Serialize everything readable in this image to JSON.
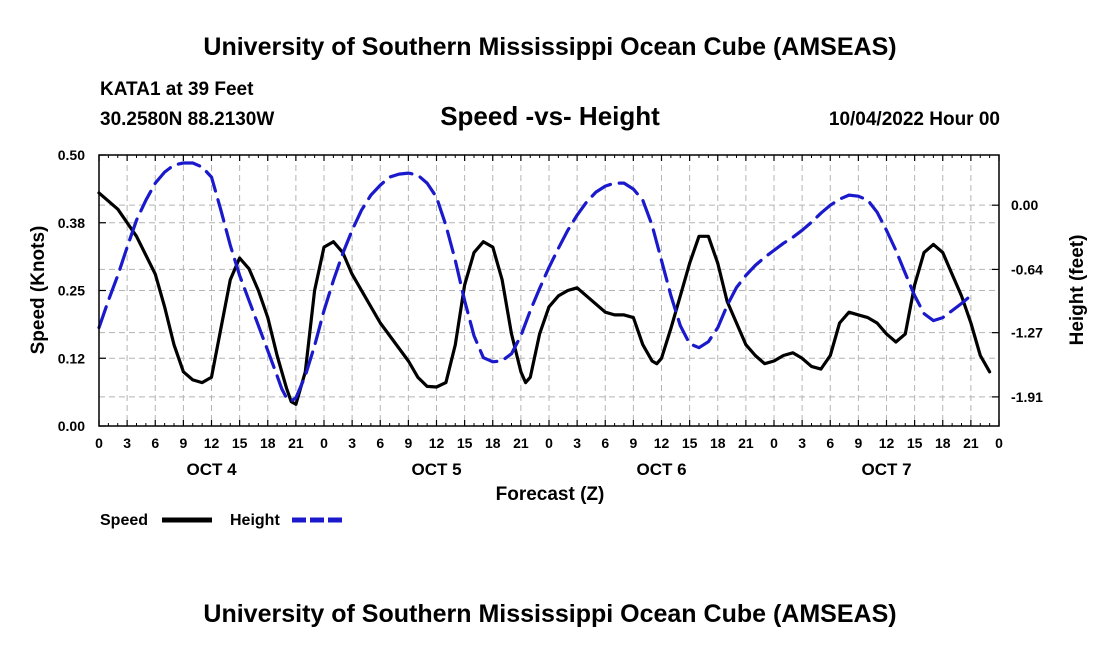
{
  "header": {
    "title_top": "University of Southern Mississippi Ocean Cube (AMSEAS)",
    "station": "KATA1 at 39 Feet",
    "coords": "30.2580N  88.2130W",
    "subtitle": "Speed -vs- Height",
    "datetime": "10/04/2022 Hour 00",
    "title_bottom": "University of Southern Mississippi Ocean Cube (AMSEAS)"
  },
  "colors": {
    "speed": "#000000",
    "height": "#1a1acc",
    "grid": "#b4b4b4"
  },
  "chart_data": {
    "type": "line",
    "xlabel": "Forecast (Z)",
    "ylabel_left": "Speed (Knots)",
    "ylabel_right": "Height (feet)",
    "x_hours": [
      0,
      3,
      6,
      9,
      12,
      15,
      18,
      21,
      24,
      27,
      30,
      33,
      36,
      39,
      42,
      45,
      48,
      51,
      54,
      57,
      60,
      63,
      66,
      69,
      72,
      75,
      78,
      81,
      84,
      87,
      90,
      93,
      96
    ],
    "x_tick_labels": [
      "0",
      "3",
      "6",
      "9",
      "12",
      "15",
      "18",
      "21",
      "0",
      "3",
      "6",
      "9",
      "12",
      "15",
      "18",
      "21",
      "0",
      "3",
      "6",
      "9",
      "12",
      "15",
      "18",
      "21",
      "0",
      "3",
      "6",
      "9",
      "12",
      "15",
      "18",
      "21",
      "0"
    ],
    "day_labels": [
      "OCT 4",
      "OCT 5",
      "OCT 6",
      "OCT 7"
    ],
    "day_label_hours": [
      12,
      36,
      60,
      84
    ],
    "left_axis": {
      "ylim": [
        0,
        0.5
      ],
      "ticks": [
        0.0,
        0.125,
        0.25,
        0.375,
        0.5
      ],
      "tick_labels": [
        "0.00",
        "0.12",
        "0.25",
        "0.38",
        "0.50"
      ]
    },
    "right_axis": {
      "ylim": [
        -2.2,
        0.5
      ],
      "ticks": [
        -1.91,
        -1.27,
        -0.64,
        0.0
      ],
      "tick_labels": [
        "-1.91",
        "-1.27",
        "-0.64",
        "0.00"
      ]
    },
    "series": [
      {
        "name": "Speed",
        "axis": "left",
        "style": "solid",
        "points": [
          [
            0,
            0.43
          ],
          [
            2,
            0.4
          ],
          [
            4,
            0.35
          ],
          [
            6,
            0.28
          ],
          [
            7,
            0.22
          ],
          [
            8,
            0.15
          ],
          [
            9,
            0.1
          ],
          [
            10,
            0.085
          ],
          [
            11,
            0.08
          ],
          [
            12,
            0.09
          ],
          [
            13,
            0.18
          ],
          [
            14,
            0.27
          ],
          [
            15,
            0.31
          ],
          [
            16,
            0.29
          ],
          [
            17,
            0.25
          ],
          [
            18,
            0.2
          ],
          [
            19,
            0.13
          ],
          [
            20,
            0.07
          ],
          [
            20.5,
            0.045
          ],
          [
            21,
            0.04
          ],
          [
            22,
            0.1
          ],
          [
            23,
            0.25
          ],
          [
            24,
            0.33
          ],
          [
            25,
            0.34
          ],
          [
            26,
            0.32
          ],
          [
            27,
            0.28
          ],
          [
            30,
            0.19
          ],
          [
            33,
            0.12
          ],
          [
            34,
            0.09
          ],
          [
            35,
            0.073
          ],
          [
            36,
            0.072
          ],
          [
            37,
            0.08
          ],
          [
            38,
            0.15
          ],
          [
            39,
            0.26
          ],
          [
            40,
            0.32
          ],
          [
            41,
            0.34
          ],
          [
            42,
            0.33
          ],
          [
            43,
            0.27
          ],
          [
            44,
            0.17
          ],
          [
            45,
            0.1
          ],
          [
            45.5,
            0.08
          ],
          [
            46,
            0.09
          ],
          [
            47,
            0.17
          ],
          [
            48,
            0.22
          ],
          [
            49,
            0.24
          ],
          [
            50,
            0.25
          ],
          [
            51,
            0.255
          ],
          [
            52,
            0.24
          ],
          [
            53,
            0.225
          ],
          [
            54,
            0.21
          ],
          [
            55,
            0.205
          ],
          [
            56,
            0.205
          ],
          [
            57,
            0.2
          ],
          [
            58,
            0.15
          ],
          [
            59,
            0.12
          ],
          [
            59.5,
            0.115
          ],
          [
            60,
            0.125
          ],
          [
            61,
            0.18
          ],
          [
            62,
            0.24
          ],
          [
            63,
            0.3
          ],
          [
            64,
            0.35
          ],
          [
            65,
            0.35
          ],
          [
            66,
            0.3
          ],
          [
            67,
            0.23
          ],
          [
            68,
            0.19
          ],
          [
            69,
            0.15
          ],
          [
            70,
            0.13
          ],
          [
            71,
            0.115
          ],
          [
            72,
            0.12
          ],
          [
            73,
            0.13
          ],
          [
            74,
            0.135
          ],
          [
            75,
            0.125
          ],
          [
            76,
            0.11
          ],
          [
            77,
            0.105
          ],
          [
            78,
            0.13
          ],
          [
            79,
            0.19
          ],
          [
            80,
            0.21
          ],
          [
            81,
            0.205
          ],
          [
            82,
            0.2
          ],
          [
            83,
            0.19
          ],
          [
            84,
            0.17
          ],
          [
            85,
            0.155
          ],
          [
            86,
            0.17
          ],
          [
            87,
            0.26
          ],
          [
            88,
            0.32
          ],
          [
            89,
            0.335
          ],
          [
            90,
            0.32
          ],
          [
            91,
            0.28
          ],
          [
            92,
            0.24
          ],
          [
            93,
            0.19
          ],
          [
            94,
            0.13
          ],
          [
            95,
            0.1
          ]
        ]
      },
      {
        "name": "Height",
        "axis": "right",
        "style": "dashed",
        "points": [
          [
            0,
            -1.22
          ],
          [
            1,
            -0.95
          ],
          [
            2,
            -0.7
          ],
          [
            3,
            -0.42
          ],
          [
            4,
            -0.15
          ],
          [
            5,
            0.05
          ],
          [
            6,
            0.22
          ],
          [
            7,
            0.33
          ],
          [
            8,
            0.4
          ],
          [
            9,
            0.42
          ],
          [
            10,
            0.42
          ],
          [
            11,
            0.38
          ],
          [
            12,
            0.28
          ],
          [
            13,
            -0.05
          ],
          [
            14,
            -0.4
          ],
          [
            15,
            -0.7
          ],
          [
            16,
            -0.95
          ],
          [
            17,
            -1.2
          ],
          [
            18,
            -1.45
          ],
          [
            19,
            -1.7
          ],
          [
            19.5,
            -1.83
          ],
          [
            20,
            -1.92
          ],
          [
            20.5,
            -1.95
          ],
          [
            21,
            -1.92
          ],
          [
            22,
            -1.7
          ],
          [
            23,
            -1.4
          ],
          [
            24,
            -1.05
          ],
          [
            25,
            -0.75
          ],
          [
            26,
            -0.48
          ],
          [
            27,
            -0.25
          ],
          [
            28,
            -0.05
          ],
          [
            29,
            0.1
          ],
          [
            30,
            0.2
          ],
          [
            31,
            0.28
          ],
          [
            32,
            0.31
          ],
          [
            33,
            0.32
          ],
          [
            34,
            0.3
          ],
          [
            35,
            0.22
          ],
          [
            36,
            0.08
          ],
          [
            37,
            -0.2
          ],
          [
            38,
            -0.55
          ],
          [
            39,
            -0.95
          ],
          [
            40,
            -1.3
          ],
          [
            41,
            -1.52
          ],
          [
            42,
            -1.56
          ],
          [
            43,
            -1.55
          ],
          [
            44,
            -1.48
          ],
          [
            45,
            -1.3
          ],
          [
            46,
            -1.05
          ],
          [
            47,
            -0.83
          ],
          [
            48,
            -0.62
          ],
          [
            49,
            -0.43
          ],
          [
            50,
            -0.25
          ],
          [
            51,
            -0.1
          ],
          [
            52,
            0.03
          ],
          [
            53,
            0.13
          ],
          [
            54,
            0.19
          ],
          [
            55,
            0.22
          ],
          [
            56,
            0.22
          ],
          [
            57,
            0.16
          ],
          [
            58,
            0.05
          ],
          [
            59,
            -0.2
          ],
          [
            60,
            -0.55
          ],
          [
            61,
            -0.9
          ],
          [
            62,
            -1.2
          ],
          [
            63,
            -1.38
          ],
          [
            64,
            -1.42
          ],
          [
            65,
            -1.36
          ],
          [
            66,
            -1.22
          ],
          [
            67,
            -1.0
          ],
          [
            68,
            -0.82
          ],
          [
            69,
            -0.7
          ],
          [
            70,
            -0.6
          ],
          [
            71,
            -0.52
          ],
          [
            72,
            -0.45
          ],
          [
            73,
            -0.38
          ],
          [
            74,
            -0.32
          ],
          [
            75,
            -0.25
          ],
          [
            76,
            -0.17
          ],
          [
            77,
            -0.08
          ],
          [
            78,
            0.0
          ],
          [
            79,
            0.06
          ],
          [
            80,
            0.1
          ],
          [
            81,
            0.09
          ],
          [
            82,
            0.05
          ],
          [
            83,
            -0.07
          ],
          [
            84,
            -0.25
          ],
          [
            85,
            -0.45
          ],
          [
            86,
            -0.68
          ],
          [
            87,
            -0.9
          ],
          [
            88,
            -1.08
          ],
          [
            89,
            -1.15
          ],
          [
            90,
            -1.12
          ],
          [
            91,
            -1.05
          ],
          [
            92,
            -0.98
          ],
          [
            93,
            -0.9
          ]
        ]
      }
    ],
    "legend": [
      {
        "label": "Speed",
        "style": "solid"
      },
      {
        "label": "Height",
        "style": "dashed"
      }
    ]
  }
}
